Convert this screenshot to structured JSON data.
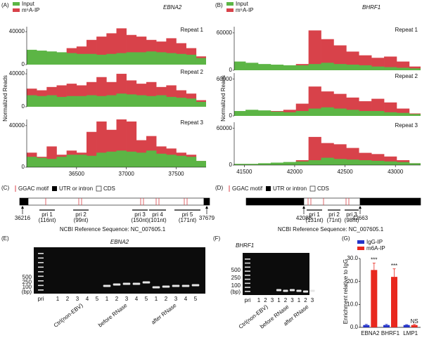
{
  "tracks": [
    {
      "label": "(A)",
      "title": "EBNA2",
      "legend": [
        {
          "name": "Input",
          "color": "#5cb545"
        },
        {
          "name": "m⁶A-IP",
          "color": "#d8424a"
        }
      ],
      "y_label": "Normalized Reads",
      "x": [
        36050,
        36150,
        36250,
        36350,
        36450,
        36550,
        36650,
        36750,
        36850,
        36950,
        37050,
        37150,
        37250,
        37350,
        37450,
        37550,
        37650,
        37750
      ],
      "xlim": [
        36000,
        37800
      ],
      "xticks": [
        36500,
        37000,
        37500
      ],
      "ylim": [
        0,
        46000
      ],
      "yticks": [
        0,
        40000
      ],
      "repeats": [
        {
          "name": "Repeat 1",
          "input": [
            18000,
            17000,
            16000,
            15000,
            14000,
            13000,
            13000,
            12000,
            13000,
            14000,
            15000,
            15000,
            16000,
            15000,
            14000,
            13000,
            12000,
            8000
          ],
          "ip": [
            12000,
            10000,
            14000,
            13000,
            20000,
            22000,
            30000,
            34000,
            38000,
            44000,
            36000,
            34000,
            30000,
            28000,
            32000,
            26000,
            20000,
            10000
          ]
        },
        {
          "name": "Repeat 2",
          "input": [
            14000,
            13000,
            14000,
            12000,
            13000,
            13000,
            14000,
            13000,
            14000,
            16000,
            15000,
            14000,
            13000,
            14000,
            12000,
            11000,
            10000,
            6000
          ],
          "ip": [
            22000,
            20000,
            24000,
            26000,
            28000,
            26000,
            30000,
            36000,
            30000,
            40000,
            32000,
            28000,
            30000,
            24000,
            26000,
            20000,
            16000,
            8000
          ]
        },
        {
          "name": "Repeat 3",
          "input": [
            10000,
            9000,
            8000,
            10000,
            12000,
            12000,
            11000,
            14000,
            15000,
            16000,
            15000,
            14000,
            16000,
            13000,
            12000,
            11000,
            10000,
            6000
          ],
          "ip": [
            14000,
            10000,
            20000,
            12000,
            16000,
            14000,
            34000,
            44000,
            36000,
            46000,
            44000,
            26000,
            30000,
            20000,
            18000,
            14000,
            12000,
            6000
          ]
        }
      ]
    },
    {
      "label": "(B)",
      "title": "BHRF1",
      "legend": [
        {
          "name": "Input",
          "color": "#5cb545"
        },
        {
          "name": "m⁶A-IP",
          "color": "#d8424a"
        }
      ],
      "y_label": "Normalized Reads",
      "x": [
        41450,
        41575,
        41700,
        41825,
        41950,
        42075,
        42200,
        42325,
        42450,
        42575,
        42700,
        42825,
        42950,
        43075,
        43200
      ],
      "xlim": [
        41400,
        43250
      ],
      "xticks": [
        41500,
        42000,
        42500,
        43000
      ],
      "ylim": [
        0,
        70000
      ],
      "yticks": [
        0,
        60000
      ],
      "repeats": [
        {
          "name": "Repeat 1",
          "input": [
            14000,
            12000,
            10000,
            9000,
            8000,
            8000,
            10000,
            12000,
            10000,
            9000,
            8000,
            6000,
            5000,
            4000,
            3000
          ],
          "ip": [
            4000,
            4000,
            3000,
            5000,
            6000,
            10000,
            64000,
            50000,
            40000,
            30000,
            24000,
            20000,
            22000,
            14000,
            6000
          ]
        },
        {
          "name": "Repeat 2",
          "input": [
            8000,
            10000,
            9000,
            7000,
            6000,
            8000,
            12000,
            14000,
            12000,
            10000,
            8000,
            8000,
            6000,
            5000,
            3000
          ],
          "ip": [
            6000,
            5000,
            6000,
            8000,
            10000,
            20000,
            48000,
            40000,
            36000,
            30000,
            24000,
            28000,
            22000,
            12000,
            4000
          ]
        },
        {
          "name": "Repeat 3",
          "input": [
            2000,
            2000,
            3000,
            4000,
            5000,
            6000,
            8000,
            12000,
            10000,
            9000,
            8000,
            7000,
            6000,
            5000,
            3000
          ],
          "ip": [
            1000,
            1000,
            2000,
            2000,
            3000,
            8000,
            46000,
            36000,
            34000,
            28000,
            20000,
            18000,
            14000,
            8000,
            3000
          ]
        }
      ]
    }
  ],
  "genes": [
    {
      "label": "(C)",
      "legend": [
        "GGAC motif",
        "UTR or intron",
        "CDS"
      ],
      "start": 36216,
      "end": 37679,
      "primers": [
        {
          "name": "pri 1",
          "size": "(116nt)"
        },
        {
          "name": "pri 2",
          "size": "(99nt)"
        },
        {
          "name": "pri 3",
          "size": "(150nt)"
        },
        {
          "name": "pri 4",
          "size": "(101nt)"
        },
        {
          "name": "pri 5",
          "size": "(171nt)"
        }
      ],
      "reference": "NCBI Reference Sequence: NC_007605.1"
    },
    {
      "label": "(D)",
      "legend": [
        "GGAC motif",
        "UTR or intron",
        "CDS"
      ],
      "start": 42088,
      "end": 42663,
      "primers": [
        {
          "name": "pri 1",
          "size": "(131nt)"
        },
        {
          "name": "pri 2",
          "size": "(71nt)"
        },
        {
          "name": "pri 3",
          "size": "(98nt)"
        }
      ],
      "reference": "NCBI Reference Sequence: NC_007605.1"
    }
  ],
  "gels": [
    {
      "label": "(E)",
      "title": "EBNA2",
      "ladder": [
        500,
        250,
        100
      ],
      "ladder_unit": "(bp)",
      "lanes": [
        "pri",
        "1",
        "2",
        "3",
        "4",
        "5",
        "1",
        "2",
        "3",
        "4",
        "5",
        "1",
        "2",
        "3",
        "4",
        "5"
      ],
      "groups": [
        "Ctrl(non-EBV)",
        "before RNase",
        "after RNase"
      ]
    },
    {
      "label": "(F)",
      "title": "BHRF1",
      "ladder": [
        500,
        250,
        100
      ],
      "ladder_unit": "(bp)",
      "lanes": [
        "pri",
        "1",
        "2",
        "3",
        "1",
        "2",
        "3",
        "1",
        "2",
        "3"
      ],
      "groups": [
        "Ctrl(non-EBV)",
        "before RNase",
        "after RNase"
      ]
    }
  ],
  "bar": {
    "label": "(G)",
    "type": "bar",
    "categories": [
      "EBNA2",
      "BHRF1",
      "LMP1"
    ],
    "series": [
      {
        "name": "IgG-IP",
        "color": "#2433c8",
        "values": [
          1,
          1,
          1
        ],
        "errors": [
          0.3,
          0.3,
          0.2
        ]
      },
      {
        "name": "m6A-IP",
        "color": "#e8281e",
        "values": [
          25,
          22,
          1
        ],
        "errors": [
          3,
          3.5,
          0.3
        ]
      }
    ],
    "ylim": [
      0,
      30
    ],
    "yticks": [
      {
        "value": 0,
        "label": "0.0"
      },
      {
        "value": 10,
        "label": "10.0"
      },
      {
        "value": 20,
        "label": "20.0"
      },
      {
        "value": 30,
        "label": "30.0"
      }
    ],
    "y_label": "Enrichment relative to IgG",
    "annotations": [
      "***",
      "***",
      "NS"
    ]
  }
}
